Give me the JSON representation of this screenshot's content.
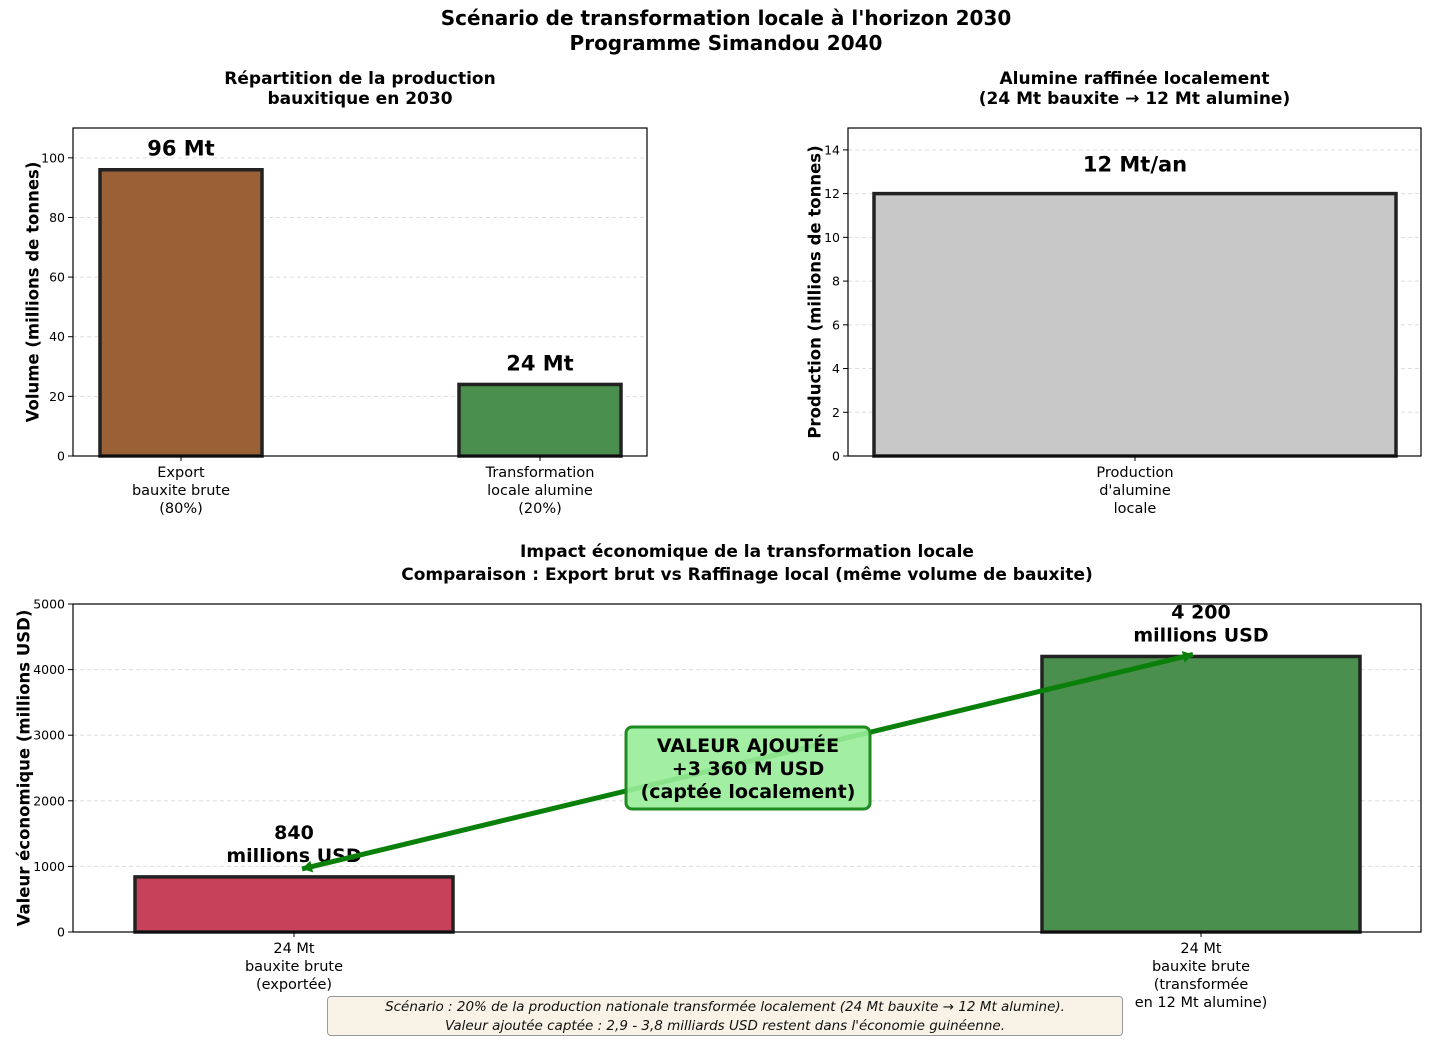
{
  "figure": {
    "title_line1": "Scénario de transformation locale à l'horizon 2030",
    "title_line2": "Programme Simandou 2040"
  },
  "chart_data": [
    {
      "type": "bar",
      "title": [
        "Répartition de la production",
        "bauxitique en 2030"
      ],
      "xlabel": "",
      "ylabel": "Volume (millions de tonnes)",
      "ylim": [
        0,
        110
      ],
      "yticks": [
        0,
        20,
        40,
        60,
        80,
        100
      ],
      "grid": "y-dashed",
      "categories": [
        [
          "Export",
          "bauxite brute",
          "(80%)"
        ],
        [
          "Transformation",
          "locale alumine",
          "(20%)"
        ]
      ],
      "values": [
        96,
        24
      ],
      "data_labels": [
        "96 Mt",
        "24 Mt"
      ],
      "colors": [
        "#9a6036",
        "#4a8f4d"
      ]
    },
    {
      "type": "bar",
      "title": [
        "Alumine raffinée localement",
        "(24 Mt bauxite → 12 Mt alumine)"
      ],
      "xlabel": "",
      "ylabel": "Production (millions de tonnes)",
      "ylim": [
        0,
        15
      ],
      "yticks": [
        0,
        2,
        4,
        6,
        8,
        10,
        12,
        14
      ],
      "grid": "y-dashed",
      "categories": [
        [
          "Production",
          "d'alumine",
          "locale"
        ]
      ],
      "values": [
        12
      ],
      "data_labels": [
        "12 Mt/an"
      ],
      "colors": [
        "#c8c8c8"
      ]
    },
    {
      "type": "bar",
      "title": [
        "Impact économique de la transformation locale",
        "Comparaison : Export brut vs Raffinage local (même volume de bauxite)"
      ],
      "xlabel": "",
      "ylabel": "Valeur économique (millions USD)",
      "ylim": [
        0,
        5000
      ],
      "yticks": [
        0,
        1000,
        2000,
        3000,
        4000,
        5000
      ],
      "grid": "y-dashed",
      "categories": [
        [
          "24 Mt",
          "bauxite brute",
          "(exportée)"
        ],
        [
          "24 Mt",
          "bauxite brute",
          "(transformée",
          "en 12 Mt alumine)"
        ]
      ],
      "values": [
        840,
        4200
      ],
      "data_labels": [
        [
          "840",
          "millions USD"
        ],
        [
          "4 200",
          "millions USD"
        ]
      ],
      "colors": [
        "#c8415a",
        "#4a8f4d"
      ],
      "annotation": {
        "lines": [
          "VALEUR AJOUTÉE",
          "+3 360 M USD",
          "(captée localement)"
        ],
        "arrow_from_value": 840,
        "arrow_to_value": 4200,
        "box_color": "#98ec98",
        "arrow_color": "#0a800a"
      }
    }
  ],
  "footnote": {
    "line1": "Scénario : 20% de la production nationale transformée localement (24 Mt bauxite → 12 Mt alumine).",
    "line2": "Valeur ajoutée captée : 2,9 - 3,8 milliards USD restent dans l'économie guinéenne."
  }
}
